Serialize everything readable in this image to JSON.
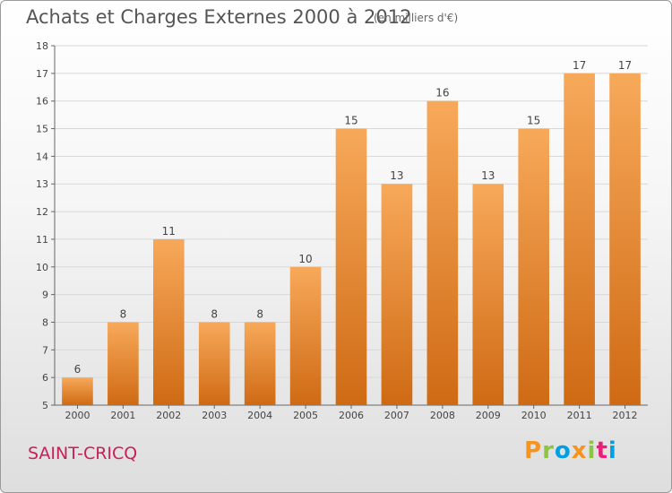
{
  "header": {
    "title": "Achats et Charges Externes 2000 à 2012",
    "unit": "(en milliers d'€)"
  },
  "footer": {
    "place": "SAINT-CRICQ",
    "brand": "Proxiti",
    "brand_colors": [
      "#f7941d",
      "#8cc63f",
      "#00a0e3",
      "#f7941d",
      "#8cc63f",
      "#e8207a",
      "#00a0e3"
    ]
  },
  "colors": {
    "bar_light": "#f7a95a",
    "bar_dark": "#cf6a14",
    "axis": "#666666",
    "grid": "#d8d8d8"
  },
  "chart_data": {
    "type": "bar",
    "title": "Achats et Charges Externes 2000 à 2012",
    "ylabel": "",
    "xlabel": "",
    "categories": [
      "2000",
      "2001",
      "2002",
      "2003",
      "2004",
      "2005",
      "2006",
      "2007",
      "2008",
      "2009",
      "2010",
      "2011",
      "2012"
    ],
    "values": [
      6,
      8,
      11,
      8,
      8,
      10,
      15,
      13,
      16,
      13,
      15,
      17,
      17
    ],
    "ylim": [
      5,
      18
    ],
    "yticks": [
      5,
      6,
      7,
      8,
      9,
      10,
      11,
      12,
      13,
      14,
      15,
      16,
      17,
      18
    ],
    "grid": true,
    "data_labels": true
  }
}
